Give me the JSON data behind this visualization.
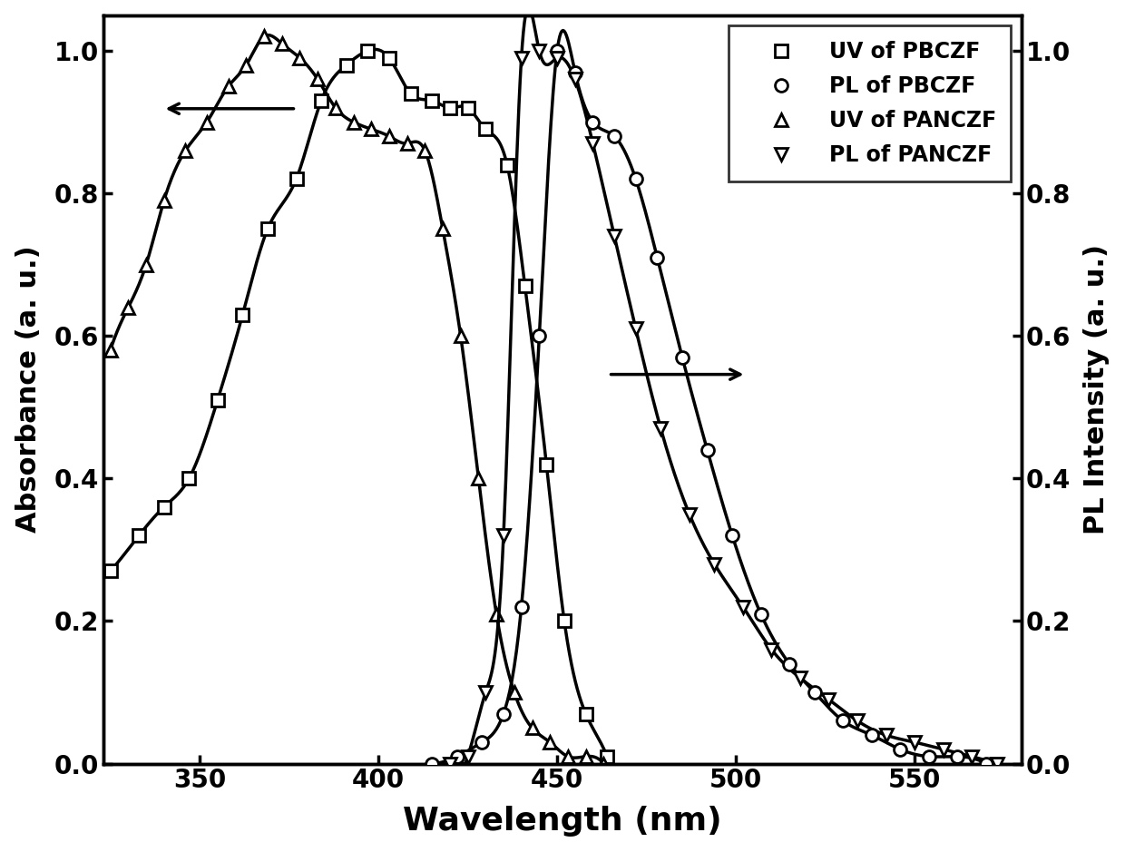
{
  "title": "",
  "xlabel": "Wavelength (nm)",
  "ylabel_left": "Absorbance (a. u.)",
  "ylabel_right": "PL Intensity (a. u.)",
  "xlim": [
    323,
    580
  ],
  "ylim": [
    0.0,
    1.05
  ],
  "xticks": [
    350,
    400,
    450,
    500,
    550
  ],
  "yticks": [
    0.0,
    0.2,
    0.4,
    0.6,
    0.8,
    1.0
  ],
  "uv_pbczf_x": [
    325,
    333,
    340,
    347,
    355,
    362,
    369,
    377,
    384,
    391,
    397,
    403,
    409,
    415,
    420,
    425,
    430,
    436,
    441,
    447,
    452,
    458,
    464
  ],
  "uv_pbczf_y": [
    0.27,
    0.32,
    0.36,
    0.4,
    0.51,
    0.63,
    0.75,
    0.82,
    0.93,
    0.98,
    1.0,
    0.99,
    0.94,
    0.93,
    0.92,
    0.92,
    0.89,
    0.84,
    0.67,
    0.42,
    0.2,
    0.07,
    0.01
  ],
  "pl_pbczf_x": [
    415,
    422,
    429,
    435,
    440,
    445,
    450,
    455,
    460,
    466,
    472,
    478,
    485,
    492,
    499,
    507,
    515,
    522,
    530,
    538,
    546,
    554,
    562,
    570
  ],
  "pl_pbczf_y": [
    0.0,
    0.01,
    0.03,
    0.07,
    0.22,
    0.6,
    1.0,
    0.97,
    0.9,
    0.88,
    0.82,
    0.71,
    0.57,
    0.44,
    0.32,
    0.21,
    0.14,
    0.1,
    0.06,
    0.04,
    0.02,
    0.01,
    0.01,
    0.0
  ],
  "uv_panczf_x": [
    325,
    330,
    335,
    340,
    346,
    352,
    358,
    363,
    368,
    373,
    378,
    383,
    388,
    393,
    398,
    403,
    408,
    413,
    418,
    423,
    428,
    433,
    438,
    443,
    448,
    453,
    458,
    463
  ],
  "uv_panczf_y": [
    0.58,
    0.64,
    0.7,
    0.79,
    0.86,
    0.9,
    0.95,
    0.98,
    1.02,
    1.01,
    0.99,
    0.96,
    0.92,
    0.9,
    0.89,
    0.88,
    0.87,
    0.86,
    0.75,
    0.6,
    0.4,
    0.21,
    0.1,
    0.05,
    0.03,
    0.01,
    0.01,
    0.0
  ],
  "pl_panczf_x": [
    420,
    425,
    430,
    435,
    440,
    445,
    450,
    455,
    460,
    466,
    472,
    479,
    487,
    494,
    502,
    510,
    518,
    526,
    534,
    542,
    550,
    558,
    566,
    573
  ],
  "pl_panczf_y": [
    0.0,
    0.01,
    0.1,
    0.32,
    0.99,
    1.0,
    0.99,
    0.96,
    0.87,
    0.74,
    0.61,
    0.47,
    0.35,
    0.28,
    0.22,
    0.16,
    0.12,
    0.09,
    0.06,
    0.04,
    0.03,
    0.02,
    0.01,
    0.0
  ],
  "line_color": "#000000",
  "bg_color": "#ffffff",
  "linewidth": 2.5,
  "markersize": 10,
  "markeredgewidth": 2.0
}
